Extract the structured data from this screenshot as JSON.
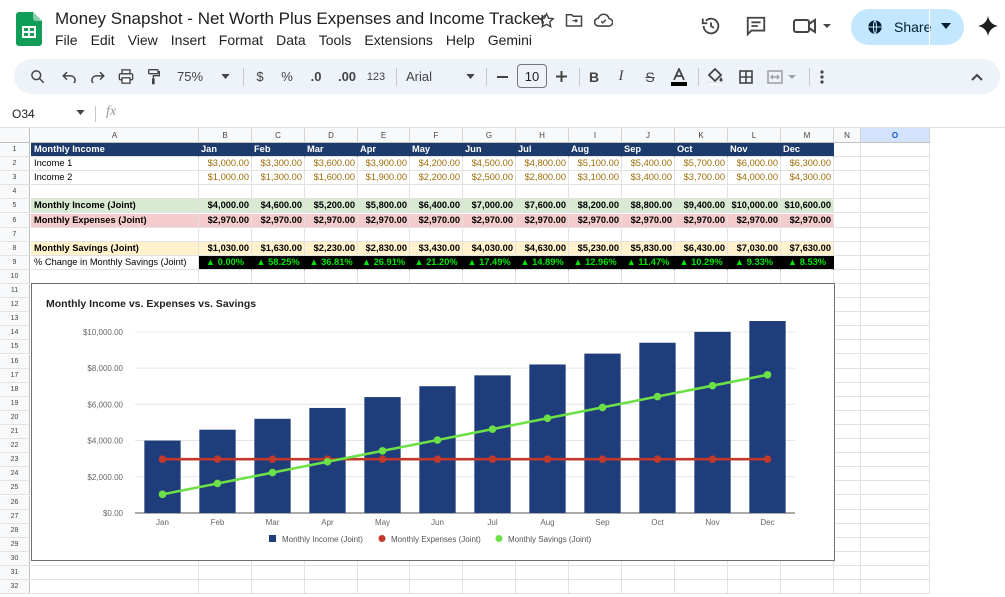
{
  "doc": {
    "title": "Money Snapshot - Net Worth Plus Expenses and Income Tracker"
  },
  "menu": [
    "File",
    "Edit",
    "View",
    "Insert",
    "Format",
    "Data",
    "Tools",
    "Extensions",
    "Help",
    "Gemini"
  ],
  "share": {
    "label": "Share"
  },
  "toolbar": {
    "zoom": "75%",
    "currency": "$",
    "percent": "%",
    "dec_less": ".0",
    "dec_more": ".00",
    "format_123": "123",
    "font": "Arial",
    "font_size": "10"
  },
  "formula": {
    "cell_ref": "O34",
    "fx": "fx",
    "value": ""
  },
  "columns": [
    "A",
    "B",
    "C",
    "D",
    "E",
    "F",
    "G",
    "H",
    "I",
    "J",
    "K",
    "L",
    "M",
    "N",
    "O"
  ],
  "rows": [
    "1",
    "2",
    "3",
    "4",
    "5",
    "6",
    "7",
    "8",
    "9",
    "10",
    "11",
    "12",
    "13",
    "14",
    "15",
    "16",
    "17",
    "18",
    "19",
    "20",
    "21",
    "22",
    "23",
    "24",
    "25",
    "26",
    "27",
    "28",
    "29",
    "30",
    "31",
    "32"
  ],
  "table": {
    "header": [
      "Monthly Income",
      "Jan",
      "Feb",
      "Mar",
      "Apr",
      "May",
      "Jun",
      "Jul",
      "Aug",
      "Sep",
      "Oct",
      "Nov",
      "Dec"
    ],
    "income1": [
      "Income 1",
      "$3,000.00",
      "$3,300.00",
      "$3,600.00",
      "$3,900.00",
      "$4,200.00",
      "$4,500.00",
      "$4,800.00",
      "$5,100.00",
      "$5,400.00",
      "$5,700.00",
      "$6,000.00",
      "$6,300.00"
    ],
    "income2": [
      "Income 2",
      "$1,000.00",
      "$1,300.00",
      "$1,600.00",
      "$1,900.00",
      "$2,200.00",
      "$2,500.00",
      "$2,800.00",
      "$3,100.00",
      "$3,400.00",
      "$3,700.00",
      "$4,000.00",
      "$4,300.00"
    ],
    "income_joint": [
      "Monthly Income (Joint)",
      "$4,000.00",
      "$4,600.00",
      "$5,200.00",
      "$5,800.00",
      "$6,400.00",
      "$7,000.00",
      "$7,600.00",
      "$8,200.00",
      "$8,800.00",
      "$9,400.00",
      "$10,000.00",
      "$10,600.00"
    ],
    "expenses_joint": [
      "Monthly Expenses (Joint)",
      "$2,970.00",
      "$2,970.00",
      "$2,970.00",
      "$2,970.00",
      "$2,970.00",
      "$2,970.00",
      "$2,970.00",
      "$2,970.00",
      "$2,970.00",
      "$2,970.00",
      "$2,970.00",
      "$2,970.00"
    ],
    "savings_joint": [
      "Monthly Savings (Joint)",
      "$1,030.00",
      "$1,630.00",
      "$2,230.00",
      "$2,830.00",
      "$3,430.00",
      "$4,030.00",
      "$4,630.00",
      "$5,230.00",
      "$5,830.00",
      "$6,430.00",
      "$7,030.00",
      "$7,630.00"
    ],
    "pct_change": [
      "% Change in Monthly Savings (Joint)",
      "▲ 0.00%",
      "▲ 58.25%",
      "▲ 36.81%",
      "▲ 26.91%",
      "▲ 21.20%",
      "▲ 17.49%",
      "▲ 14.89%",
      "▲ 12.96%",
      "▲ 11.47%",
      "▲ 10.29%",
      "▲ 9.33%",
      "▲ 8.53%"
    ]
  },
  "colors": {
    "header_bg": "#1c3a6b",
    "income_bg": "#d9ead3",
    "expense_bg": "#f4cccc",
    "savings_bg": "#fff2cc",
    "value_text": "#9c6d08",
    "pct_bg": "#000000",
    "pct_text": "#00e600",
    "bar": "#1f3d7a",
    "expense_line": "#c0392b",
    "savings_line": "#6ce047"
  },
  "chart_data": {
    "type": "bar",
    "title": "Monthly Income vs. Expenses vs. Savings",
    "categories": [
      "Jan",
      "Feb",
      "Mar",
      "Apr",
      "May",
      "Jun",
      "Jul",
      "Aug",
      "Sep",
      "Oct",
      "Nov",
      "Dec"
    ],
    "series": [
      {
        "name": "Monthly Income (Joint)",
        "type": "bar",
        "values": [
          4000,
          4600,
          5200,
          5800,
          6400,
          7000,
          7600,
          8200,
          8800,
          9400,
          10000,
          10600
        ]
      },
      {
        "name": "Monthly Expenses (Joint)",
        "type": "line",
        "values": [
          2970,
          2970,
          2970,
          2970,
          2970,
          2970,
          2970,
          2970,
          2970,
          2970,
          2970,
          2970
        ]
      },
      {
        "name": "Monthly Savings (Joint)",
        "type": "line",
        "values": [
          1030,
          1630,
          2230,
          2830,
          3430,
          4030,
          4630,
          5230,
          5830,
          6430,
          7030,
          7630
        ]
      }
    ],
    "ylim": [
      0,
      10600
    ],
    "yticks": [
      "$0.00",
      "$2,000.00",
      "$4,000.00",
      "$6,000.00",
      "$8,000.00",
      "$10,000.00"
    ],
    "ytick_values": [
      0,
      2000,
      4000,
      6000,
      8000,
      10000
    ],
    "legend": "bottom"
  }
}
